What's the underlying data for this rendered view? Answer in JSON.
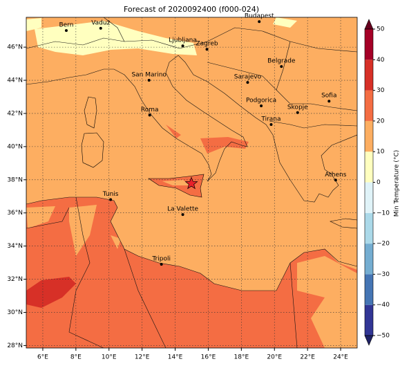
{
  "map": {
    "title": "Forecast of 2020092400 (f000-024)",
    "xlim": [
      5,
      25
    ],
    "ylim": [
      27.85,
      47.8
    ],
    "xticks": [
      {
        "value": 6,
        "label": "6°E"
      },
      {
        "value": 8,
        "label": "8°E"
      },
      {
        "value": 10,
        "label": "10°E"
      },
      {
        "value": 12,
        "label": "12°E"
      },
      {
        "value": 14,
        "label": "14°E"
      },
      {
        "value": 16,
        "label": "16°E"
      },
      {
        "value": 18,
        "label": "18°E"
      },
      {
        "value": 20,
        "label": "20°E"
      },
      {
        "value": 22,
        "label": "22°E"
      },
      {
        "value": 24,
        "label": "24°E"
      }
    ],
    "yticks": [
      {
        "value": 28,
        "label": "28°N"
      },
      {
        "value": 30,
        "label": "30°N"
      },
      {
        "value": 32,
        "label": "32°N"
      },
      {
        "value": 34,
        "label": "34°N"
      },
      {
        "value": 36,
        "label": "36°N"
      },
      {
        "value": 38,
        "label": "38°N"
      },
      {
        "value": 40,
        "label": "40°N"
      },
      {
        "value": 42,
        "label": "42°N"
      },
      {
        "value": 44,
        "label": "44°N"
      },
      {
        "value": 46,
        "label": "46°N"
      }
    ],
    "grid": true,
    "cities": [
      {
        "name": "Bern",
        "lon": 7.42,
        "lat": 47.0
      },
      {
        "name": "Vaduz",
        "lon": 9.5,
        "lat": 47.14
      },
      {
        "name": "Budapest",
        "lon": 19.08,
        "lat": 47.54
      },
      {
        "name": "Ljubljana",
        "lon": 14.46,
        "lat": 46.08
      },
      {
        "name": "Zagreb",
        "lon": 15.92,
        "lat": 45.87
      },
      {
        "name": "Belgrade",
        "lon": 20.42,
        "lat": 44.83
      },
      {
        "name": "San Marino",
        "lon": 12.42,
        "lat": 44.0
      },
      {
        "name": "Sarajevo",
        "lon": 18.38,
        "lat": 43.87
      },
      {
        "name": "Sofia",
        "lon": 23.3,
        "lat": 42.74
      },
      {
        "name": "Roma",
        "lon": 12.46,
        "lat": 41.9
      },
      {
        "name": "Podgorica",
        "lon": 19.2,
        "lat": 42.46
      },
      {
        "name": "Skopje",
        "lon": 21.4,
        "lat": 42.05
      },
      {
        "name": "Tirana",
        "lon": 19.8,
        "lat": 41.33
      },
      {
        "name": "Athens",
        "lon": 23.7,
        "lat": 37.98
      },
      {
        "name": "Tunis",
        "lon": 10.1,
        "lat": 36.8
      },
      {
        "name": "La Valette",
        "lon": 14.46,
        "lat": 35.9
      },
      {
        "name": "Tripoli",
        "lon": 13.17,
        "lat": 32.9
      }
    ],
    "marker": {
      "lon": 14.98,
      "lat": 37.77,
      "color": "#e8202a"
    },
    "colorbar": {
      "label": "Min Temperature (°C)",
      "ticks": [
        {
          "value": -50,
          "label": "−50"
        },
        {
          "value": -40,
          "label": "−40"
        },
        {
          "value": -30,
          "label": "−30"
        },
        {
          "value": -20,
          "label": "−20"
        },
        {
          "value": -10,
          "label": "−10"
        },
        0,
        10,
        20,
        30,
        40,
        50
      ],
      "colors": [
        "#313695",
        "#4575b4",
        "#74add1",
        "#abd9e9",
        "#e0f3f8",
        "#ffffbf",
        "#fdae61",
        "#f46d43",
        "#d73027",
        "#a50026"
      ],
      "under_color": "#1f2266",
      "over_color": "#67001f"
    }
  }
}
